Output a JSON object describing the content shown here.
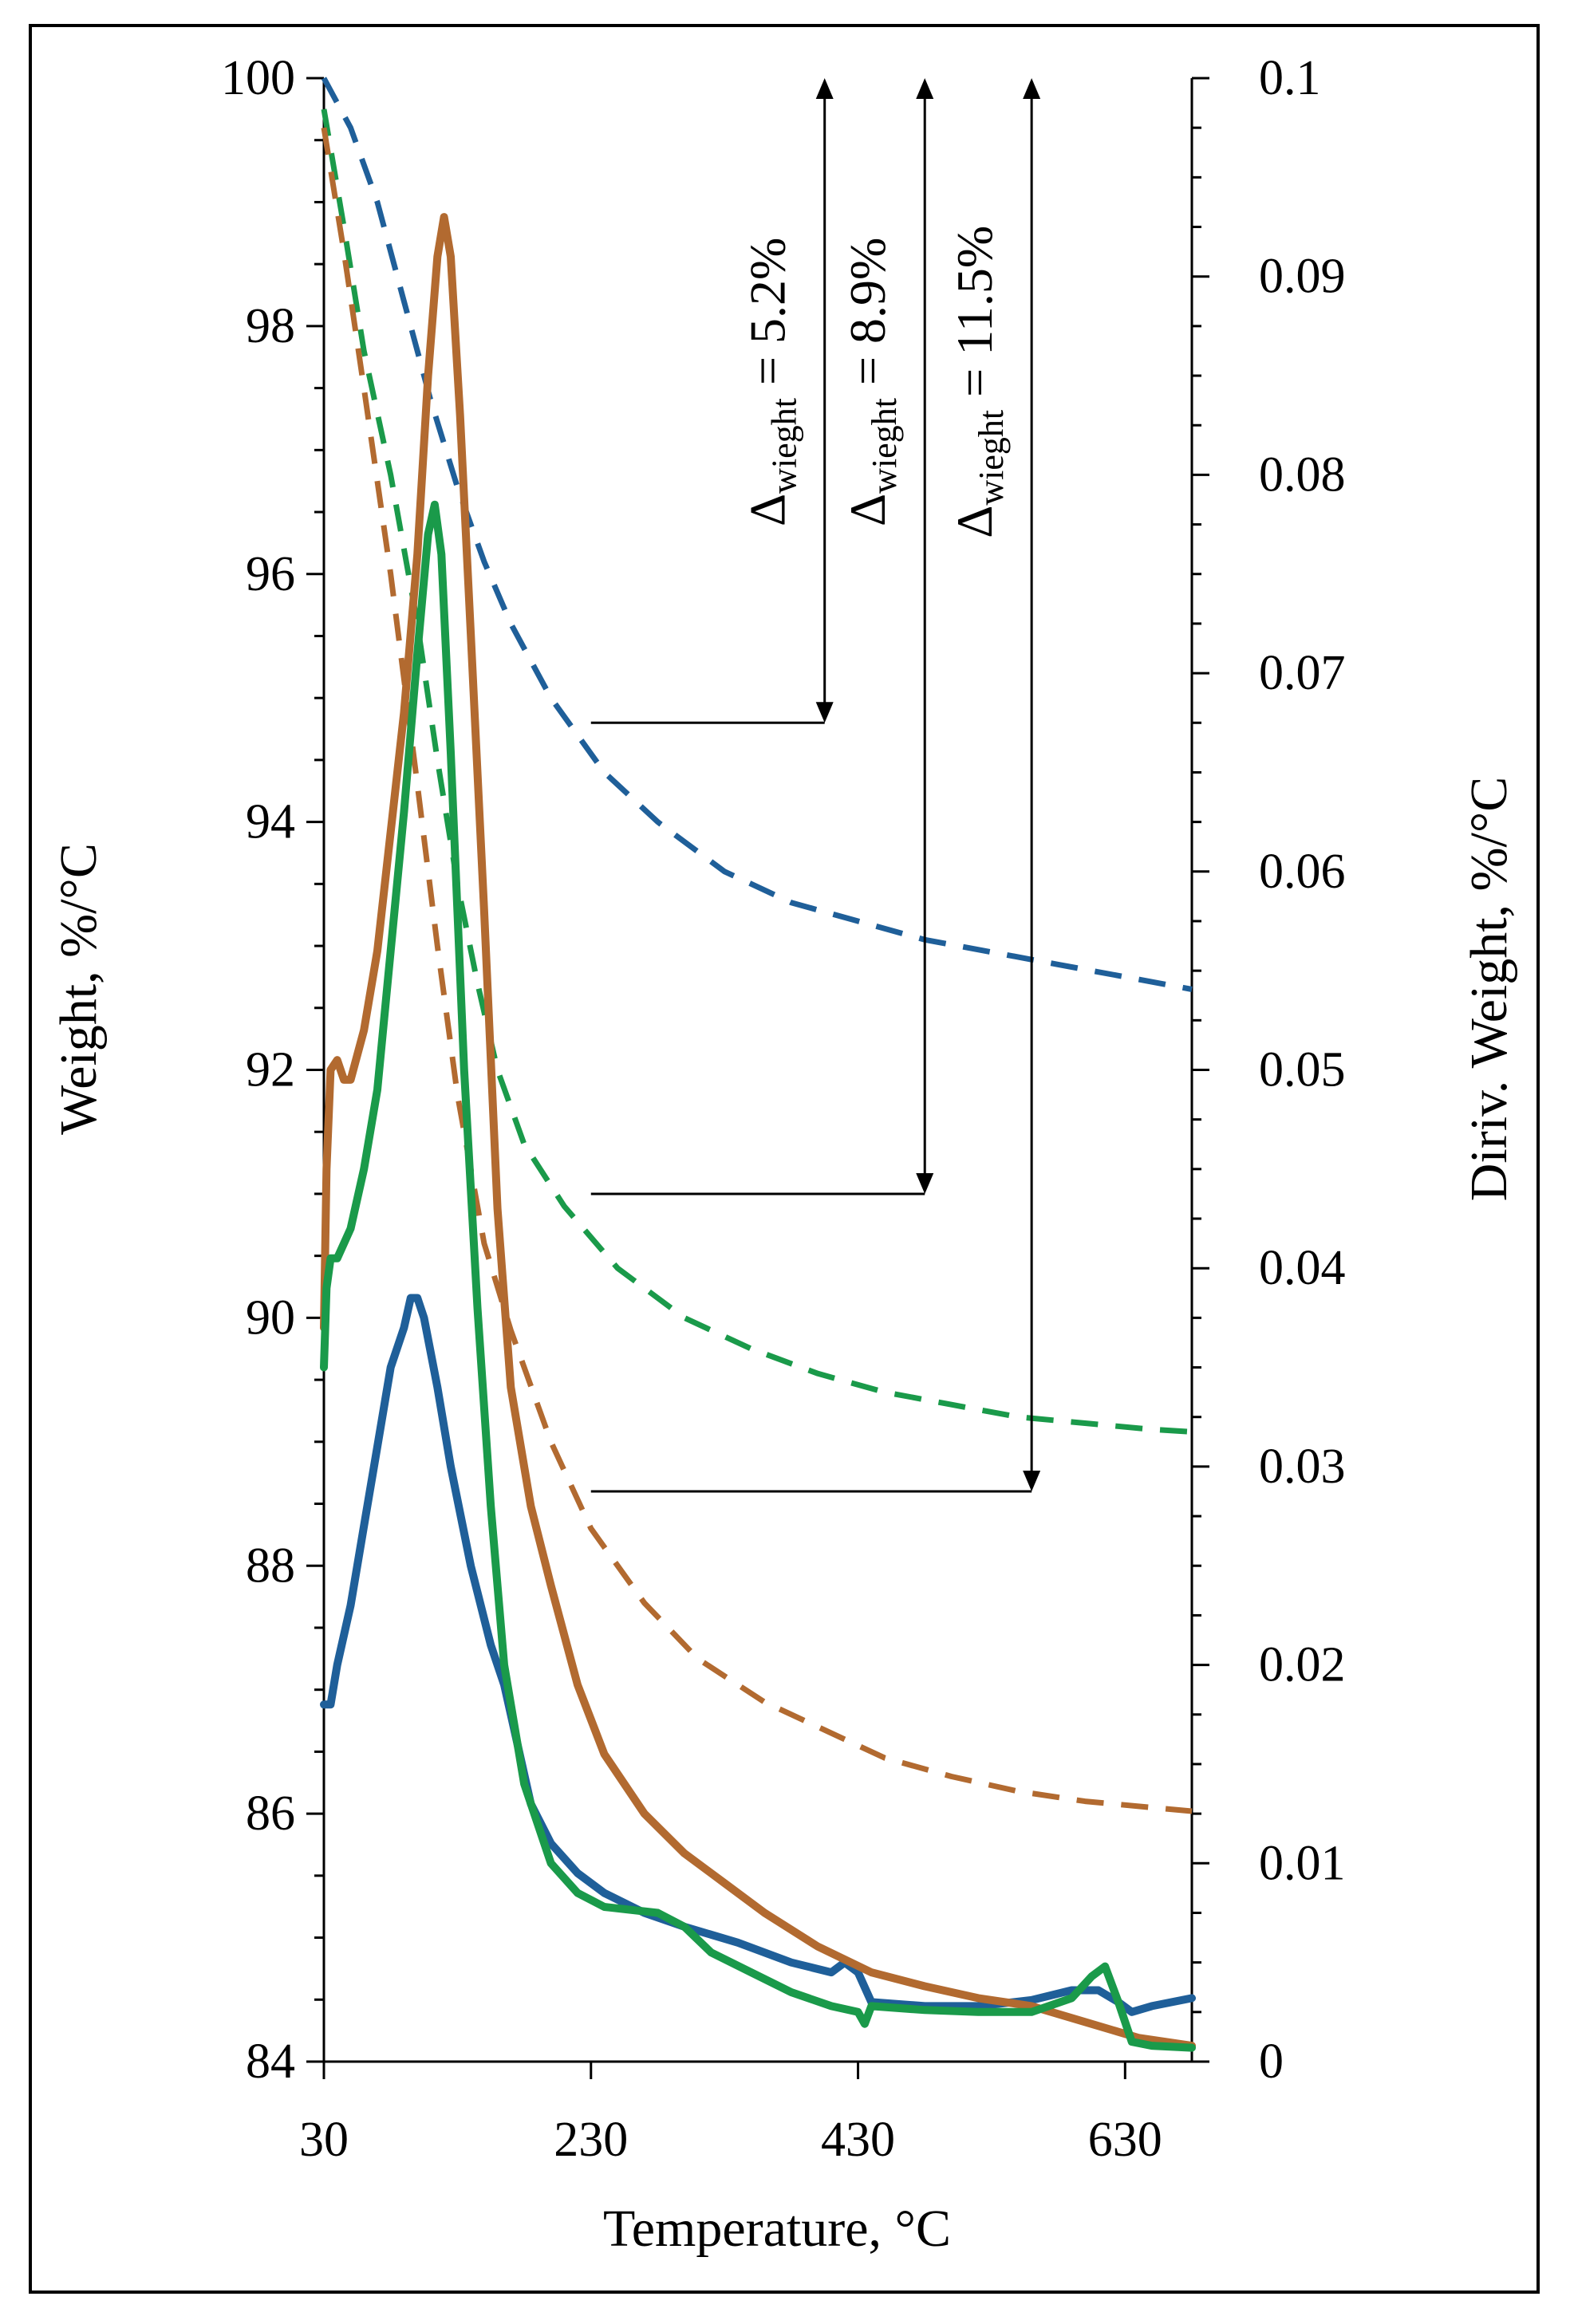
{
  "chart_data": {
    "type": "line",
    "title": "",
    "xlabel": "Temperature, °C",
    "ylabel_left": "Weight, %/°C",
    "ylabel_right": "Diriv. Weight, %/°C",
    "xlim": [
      30,
      680
    ],
    "ylim_left": [
      84,
      100
    ],
    "ylim_right": [
      0,
      0.1
    ],
    "x_ticks": [
      "30",
      "230",
      "430",
      "630"
    ],
    "y_left_ticks": [
      "84",
      "86",
      "88",
      "90",
      "92",
      "94",
      "96",
      "98",
      "100"
    ],
    "y_right_ticks": [
      "0",
      "0.01",
      "0.02",
      "0.03",
      "0.04",
      "0.05",
      "0.06",
      "0.07",
      "0.08",
      "0.09",
      "0.1"
    ],
    "series": [
      {
        "name": "blue weight",
        "axis": "left",
        "style": "dashed",
        "color": "#1f5f99",
        "points": [
          [
            30,
            100
          ],
          [
            50,
            99.6
          ],
          [
            70,
            99.0
          ],
          [
            90,
            98.2
          ],
          [
            110,
            97.4
          ],
          [
            130,
            96.7
          ],
          [
            150,
            96.1
          ],
          [
            170,
            95.6
          ],
          [
            200,
            95.0
          ],
          [
            240,
            94.4
          ],
          [
            280,
            94.0
          ],
          [
            330,
            93.6
          ],
          [
            380,
            93.35
          ],
          [
            430,
            93.2
          ],
          [
            480,
            93.05
          ],
          [
            530,
            92.95
          ],
          [
            580,
            92.85
          ],
          [
            630,
            92.75
          ],
          [
            680,
            92.65
          ]
        ]
      },
      {
        "name": "green weight",
        "axis": "left",
        "style": "dashed",
        "color": "#1a9a4a",
        "points": [
          [
            30,
            99.75
          ],
          [
            45,
            98.8
          ],
          [
            60,
            97.8
          ],
          [
            80,
            96.8
          ],
          [
            100,
            95.6
          ],
          [
            115,
            94.5
          ],
          [
            130,
            93.5
          ],
          [
            145,
            92.7
          ],
          [
            160,
            92.0
          ],
          [
            180,
            91.4
          ],
          [
            210,
            90.9
          ],
          [
            250,
            90.4
          ],
          [
            300,
            90.0
          ],
          [
            350,
            89.75
          ],
          [
            400,
            89.55
          ],
          [
            450,
            89.4
          ],
          [
            500,
            89.3
          ],
          [
            550,
            89.2
          ],
          [
            600,
            89.15
          ],
          [
            650,
            89.1
          ],
          [
            680,
            89.08
          ]
        ]
      },
      {
        "name": "brown weight",
        "axis": "left",
        "style": "dashed",
        "color": "#b26a30",
        "points": [
          [
            30,
            99.6
          ],
          [
            45,
            98.6
          ],
          [
            60,
            97.5
          ],
          [
            80,
            96.0
          ],
          [
            100,
            94.3
          ],
          [
            115,
            93.0
          ],
          [
            130,
            91.8
          ],
          [
            150,
            90.6
          ],
          [
            170,
            89.9
          ],
          [
            200,
            89.0
          ],
          [
            230,
            88.3
          ],
          [
            270,
            87.7
          ],
          [
            310,
            87.25
          ],
          [
            360,
            86.9
          ],
          [
            400,
            86.7
          ],
          [
            450,
            86.45
          ],
          [
            500,
            86.3
          ],
          [
            550,
            86.18
          ],
          [
            600,
            86.1
          ],
          [
            650,
            86.05
          ],
          [
            680,
            86.02
          ]
        ]
      },
      {
        "name": "blue derivative",
        "axis": "right",
        "style": "solid",
        "color": "#1f5f99",
        "points": [
          [
            30,
            0.018
          ],
          [
            35,
            0.018
          ],
          [
            40,
            0.02
          ],
          [
            50,
            0.023
          ],
          [
            60,
            0.027
          ],
          [
            70,
            0.031
          ],
          [
            80,
            0.035
          ],
          [
            90,
            0.037
          ],
          [
            95,
            0.0385
          ],
          [
            100,
            0.0385
          ],
          [
            105,
            0.0375
          ],
          [
            115,
            0.034
          ],
          [
            125,
            0.03
          ],
          [
            140,
            0.025
          ],
          [
            155,
            0.021
          ],
          [
            165,
            0.019
          ],
          [
            175,
            0.016
          ],
          [
            185,
            0.013
          ],
          [
            200,
            0.011
          ],
          [
            220,
            0.0095
          ],
          [
            240,
            0.0085
          ],
          [
            270,
            0.0075
          ],
          [
            300,
            0.0068
          ],
          [
            340,
            0.006
          ],
          [
            380,
            0.005
          ],
          [
            410,
            0.0045
          ],
          [
            420,
            0.005
          ],
          [
            430,
            0.0045
          ],
          [
            440,
            0.003
          ],
          [
            480,
            0.0028
          ],
          [
            520,
            0.0028
          ],
          [
            560,
            0.0031
          ],
          [
            590,
            0.0036
          ],
          [
            610,
            0.0036
          ],
          [
            625,
            0.003
          ],
          [
            635,
            0.0025
          ],
          [
            650,
            0.0028
          ],
          [
            680,
            0.0032
          ]
        ]
      },
      {
        "name": "brown derivative",
        "axis": "right",
        "style": "solid",
        "color": "#b26a30",
        "points": [
          [
            30,
            0.037
          ],
          [
            32,
            0.045
          ],
          [
            35,
            0.05
          ],
          [
            40,
            0.0505
          ],
          [
            45,
            0.0495
          ],
          [
            50,
            0.0495
          ],
          [
            60,
            0.052
          ],
          [
            70,
            0.056
          ],
          [
            80,
            0.062
          ],
          [
            90,
            0.068
          ],
          [
            100,
            0.076
          ],
          [
            108,
            0.085
          ],
          [
            115,
            0.091
          ],
          [
            120,
            0.093
          ],
          [
            125,
            0.091
          ],
          [
            132,
            0.083
          ],
          [
            140,
            0.072
          ],
          [
            150,
            0.058
          ],
          [
            160,
            0.043
          ],
          [
            170,
            0.034
          ],
          [
            185,
            0.028
          ],
          [
            200,
            0.024
          ],
          [
            220,
            0.019
          ],
          [
            240,
            0.0155
          ],
          [
            270,
            0.0125
          ],
          [
            300,
            0.0105
          ],
          [
            330,
            0.009
          ],
          [
            360,
            0.0075
          ],
          [
            400,
            0.0058
          ],
          [
            440,
            0.0045
          ],
          [
            480,
            0.0038
          ],
          [
            520,
            0.0032
          ],
          [
            560,
            0.0028
          ],
          [
            600,
            0.002
          ],
          [
            640,
            0.0012
          ],
          [
            680,
            0.0008
          ]
        ]
      },
      {
        "name": "green derivative",
        "axis": "right",
        "style": "solid",
        "color": "#1a9a4a",
        "points": [
          [
            30,
            0.035
          ],
          [
            32,
            0.039
          ],
          [
            35,
            0.0405
          ],
          [
            40,
            0.0405
          ],
          [
            50,
            0.042
          ],
          [
            60,
            0.045
          ],
          [
            70,
            0.049
          ],
          [
            80,
            0.056
          ],
          [
            90,
            0.063
          ],
          [
            100,
            0.071
          ],
          [
            108,
            0.077
          ],
          [
            113,
            0.0785
          ],
          [
            118,
            0.076
          ],
          [
            125,
            0.066
          ],
          [
            135,
            0.05
          ],
          [
            145,
            0.038
          ],
          [
            155,
            0.028
          ],
          [
            165,
            0.02
          ],
          [
            180,
            0.014
          ],
          [
            200,
            0.01
          ],
          [
            220,
            0.0085
          ],
          [
            240,
            0.0078
          ],
          [
            280,
            0.0075
          ],
          [
            300,
            0.0068
          ],
          [
            320,
            0.0055
          ],
          [
            350,
            0.0045
          ],
          [
            380,
            0.0035
          ],
          [
            410,
            0.0028
          ],
          [
            430,
            0.0025
          ],
          [
            435,
            0.0019
          ],
          [
            440,
            0.0028
          ],
          [
            480,
            0.0026
          ],
          [
            520,
            0.0025
          ],
          [
            560,
            0.0025
          ],
          [
            590,
            0.0032
          ],
          [
            605,
            0.0043
          ],
          [
            615,
            0.0048
          ],
          [
            625,
            0.003
          ],
          [
            635,
            0.001
          ],
          [
            650,
            0.0008
          ],
          [
            680,
            0.0007
          ]
        ]
      }
    ],
    "annotations": [
      {
        "label": "Δ",
        "subscript": "wieght",
        "value_text": " = 5.2%",
        "x": 405,
        "y_from": 100,
        "y_to": 94.8,
        "leader_from_x": 230
      },
      {
        "label": "Δ",
        "subscript": "wieght",
        "value_text": " = 8.9%",
        "x": 480,
        "y_from": 100,
        "y_to": 91.0,
        "leader_from_x": 230
      },
      {
        "label": "Δ",
        "subscript": "wieght",
        "value_text": " = 11.5%",
        "x": 560,
        "y_from": 100,
        "y_to": 88.6,
        "leader_from_x": 230
      }
    ]
  }
}
